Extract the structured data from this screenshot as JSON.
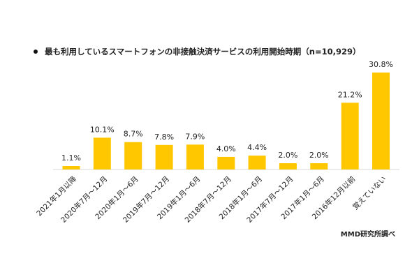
{
  "chart_data": {
    "type": "bar",
    "title": "最も利用しているスマートフォンの非接触決済サービスの利用開始時期（n=10,929）",
    "categories": [
      "2021年1月以降",
      "2020年7月～12月",
      "2020年1月～6月",
      "2019年7月～12月",
      "2019年1月～6月",
      "2018年7月～12月",
      "2018年1月～6月",
      "2017年7月～12月",
      "2017年1月～6月",
      "2016年12月以前",
      "覚えていない"
    ],
    "values": [
      1.1,
      10.1,
      8.7,
      7.8,
      7.9,
      4.0,
      4.4,
      2.0,
      2.0,
      21.2,
      30.8
    ],
    "value_labels": [
      "1.1%",
      "10.1%",
      "8.7%",
      "7.8%",
      "7.9%",
      "4.0%",
      "4.4%",
      "2.0%",
      "2.0%",
      "21.2%",
      "30.8%"
    ],
    "bar_color": "#FFC700",
    "ylim": [
      0,
      30.8
    ],
    "grid": false,
    "source": "MMD研究所調べ"
  }
}
